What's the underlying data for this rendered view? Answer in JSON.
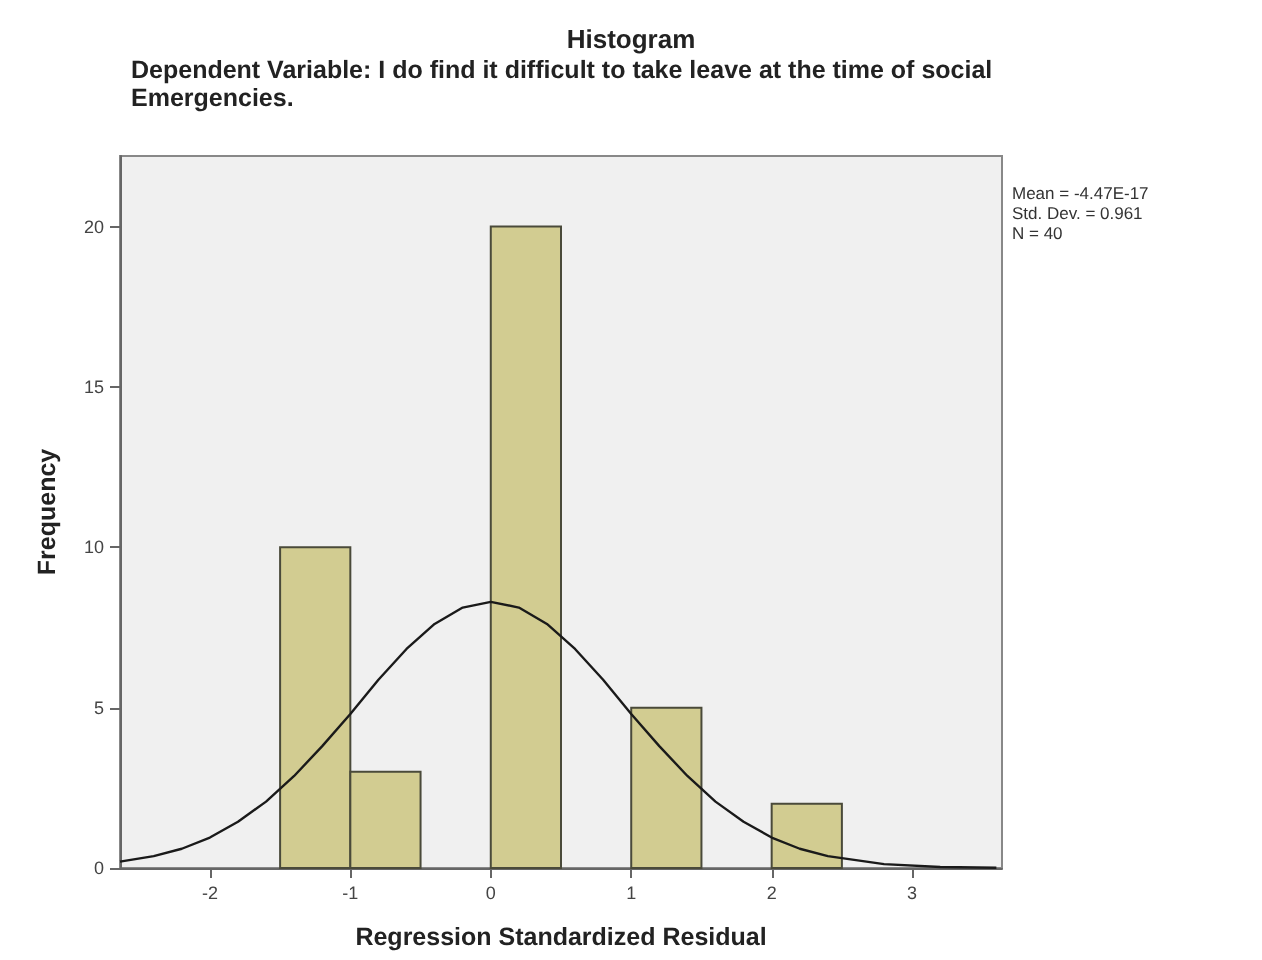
{
  "chart_data": {
    "type": "histogram",
    "title": "Histogram",
    "subtitle": "Dependent Variable: I do find it difficult to take leave at the time of social Emergencies.",
    "xlabel": "Regression Standardized Residual",
    "ylabel": "Frequency",
    "bins": [
      -1.5,
      -1,
      -0.5,
      0,
      0.5,
      1,
      1.5,
      2,
      2.5
    ],
    "values": [
      10,
      3,
      0,
      20,
      0,
      5,
      0,
      2
    ],
    "color": "#d2cc91",
    "series": [
      {
        "type": "line",
        "color": "#1a1a1a",
        "marker": "none",
        "x": [
          -2.64,
          -2.4,
          -2.2,
          -2,
          -1.8,
          -1.6,
          -1.4,
          -1.2,
          -1,
          -0.8,
          -0.6,
          -0.4,
          -0.2,
          0,
          0.2,
          0.4,
          0.6,
          0.8,
          1,
          1.2,
          1.4,
          1.6,
          1.8,
          2,
          2.2,
          2.4,
          2.8,
          3.2,
          3.6
        ],
        "values": [
          0.2,
          0.37,
          0.6,
          0.95,
          1.44,
          2.07,
          2.87,
          3.8,
          4.8,
          5.87,
          6.83,
          7.61,
          8.12,
          8.3,
          8.12,
          7.61,
          6.83,
          5.87,
          4.8,
          3.8,
          2.87,
          2.07,
          1.44,
          0.95,
          0.6,
          0.37,
          0.12,
          0.03,
          0.01
        ]
      }
    ],
    "xlim": [
      -2.64,
      3.64
    ],
    "xticks": [
      -2,
      -1,
      0,
      1,
      2,
      3
    ],
    "ylim": [
      0,
      22.2
    ],
    "yticks": [
      0,
      5,
      10,
      15,
      20
    ],
    "grid": false,
    "annotations": [
      "Mean = -4.47E-17",
      "Std. Dev. = 0.961",
      "N = 40"
    ]
  }
}
